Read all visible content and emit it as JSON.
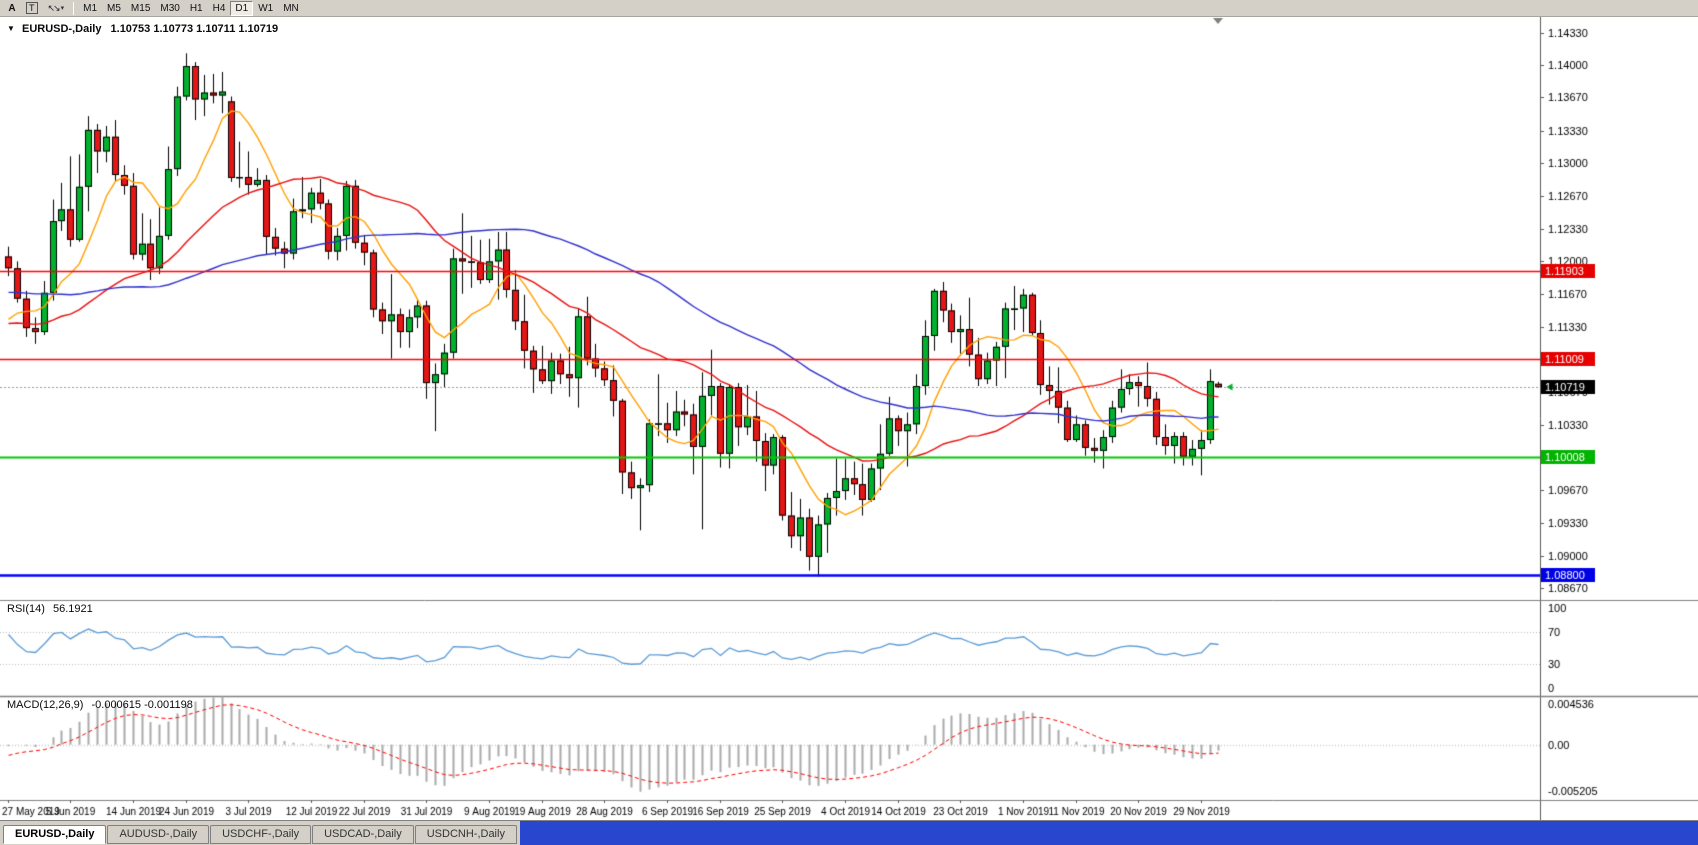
{
  "ui_colors": {
    "window_gray": "#d4d0c8",
    "tabbar_fill_blue": "#2946cf"
  },
  "toolbar": {
    "tool_buttons": [
      "A",
      "T"
    ],
    "timeframes": [
      "M1",
      "M5",
      "M15",
      "M30",
      "H1",
      "H4",
      "D1",
      "W1",
      "MN"
    ],
    "active_timeframe": "D1"
  },
  "tabs": {
    "items": [
      "EURUSD-,Daily",
      "AUDUSD-,Daily",
      "USDCHF-,Daily",
      "USDCAD-,Daily",
      "USDCNH-,Daily"
    ],
    "active": "EURUSD-,Daily"
  },
  "chart_data": {
    "type": "candlestick",
    "title": "EURUSD-,Daily",
    "ohlc_text": "1.10753 1.10773 1.10711 1.10719",
    "price_axis": {
      "max": 1.1449,
      "min": 1.0855,
      "ticks": [
        "1.14330",
        "1.14000",
        "1.13670",
        "1.13330",
        "1.13000",
        "1.12670",
        "1.12330",
        "1.12000",
        "1.11670",
        "1.11330",
        "1.11000",
        "1.10670",
        "1.10330",
        "1.10000",
        "1.09670",
        "1.09330",
        "1.09000",
        "1.08670"
      ]
    },
    "x_labels": [
      [
        0,
        "27 May 2019"
      ],
      [
        7,
        "5 Jun 2019"
      ],
      [
        14,
        "14 Jun 2019"
      ],
      [
        20,
        "24 Jun 2019"
      ],
      [
        27,
        "3 Jul 2019"
      ],
      [
        34,
        "12 Jul 2019"
      ],
      [
        40,
        "22 Jul 2019"
      ],
      [
        47,
        "31 Jul 2019"
      ],
      [
        54,
        "9 Aug 2019"
      ],
      [
        60,
        "19 Aug 2019"
      ],
      [
        67,
        "28 Aug 2019"
      ],
      [
        74,
        "6 Sep 2019"
      ],
      [
        80,
        "16 Sep 2019"
      ],
      [
        87,
        "25 Sep 2019"
      ],
      [
        94,
        "4 Oct 2019"
      ],
      [
        100,
        "14 Oct 2019"
      ],
      [
        107,
        "23 Oct 2019"
      ],
      [
        114,
        "1 Nov 2019"
      ],
      [
        120,
        "11 Nov 2019"
      ],
      [
        127,
        "20 Nov 2019"
      ],
      [
        134,
        "29 Nov 2019"
      ]
    ],
    "hlines": [
      {
        "price": 1.11903,
        "color": "#ff0000",
        "box_color": "#e60000",
        "width": 1.6,
        "label": "1.11903"
      },
      {
        "price": 1.11009,
        "color": "#ff0000",
        "box_color": "#e60000",
        "width": 1.6,
        "label": "1.11009"
      },
      {
        "price": 1.10008,
        "color": "#00cc00",
        "box_color": "#00b400",
        "width": 2,
        "label": "1.10008"
      },
      {
        "price": 1.088,
        "color": "#0000ff",
        "box_color": "#0000e6",
        "width": 2.5,
        "label": "1.08800"
      }
    ],
    "current_price": {
      "value": 1.10719,
      "label": "1.10719",
      "box_color": "#000000"
    },
    "objects": [
      {
        "type": "arrow-left",
        "price": 1.10719,
        "color": "#00b22d"
      }
    ],
    "moving_averages": [
      {
        "period": 8,
        "color": "#ffa000"
      },
      {
        "period": 28,
        "color": "#e81010"
      },
      {
        "period": 55,
        "color": "#3030cc"
      }
    ],
    "rsi": {
      "period": 14,
      "label_name": "RSI(14)",
      "label_value": "56.1921",
      "levels": [
        70,
        30
      ],
      "scale_labels": [
        "100",
        "70",
        "30",
        "0"
      ],
      "color": "#5b9bd5"
    },
    "macd": {
      "fast": 12,
      "slow": 26,
      "signal": 9,
      "label_name": "MACD(12,26,9)",
      "label_values": "-0.000615 -0.001198",
      "scale_max": 0.004536,
      "scale_min": -0.005205,
      "scale_labels": [
        "0.004536",
        "0.00",
        "-0.005205"
      ]
    },
    "colors": {
      "up": "#00b22d",
      "down": "#e51616",
      "wick": "#000000",
      "macd_hist": "#ababab",
      "macd_signal": "#ff0000"
    },
    "preroll_closes": [
      1.1255,
      1.1262,
      1.1248,
      1.124,
      1.1232,
      1.1238,
      1.1225,
      1.1218,
      1.1226,
      1.1212,
      1.1205,
      1.1212,
      1.1198,
      1.119,
      1.1196,
      1.1203,
      1.1188,
      1.1176,
      1.1182,
      1.117,
      1.1162,
      1.117,
      1.1155,
      1.1148,
      1.1156,
      1.1143,
      1.1136,
      1.1144,
      1.1152,
      1.116,
      1.1148,
      1.114,
      1.1132,
      1.1138,
      1.1125,
      1.1118,
      1.1126,
      1.1134,
      1.1121,
      1.1115,
      1.1122,
      1.1128,
      1.1116,
      1.111,
      1.1118,
      1.1124,
      1.1133,
      1.1141,
      1.115,
      1.1158
    ],
    "candles": [
      [
        1.1205,
        1.1215,
        1.1185,
        1.1193
      ],
      [
        1.1193,
        1.12,
        1.1158,
        1.1162
      ],
      [
        1.1162,
        1.117,
        1.1123,
        1.1132
      ],
      [
        1.1132,
        1.1143,
        1.1116,
        1.1128
      ],
      [
        1.1128,
        1.118,
        1.1125,
        1.1168
      ],
      [
        1.1168,
        1.1263,
        1.116,
        1.1241
      ],
      [
        1.1241,
        1.128,
        1.1231,
        1.1253
      ],
      [
        1.1253,
        1.1307,
        1.1215,
        1.1222
      ],
      [
        1.1222,
        1.1309,
        1.122,
        1.1276
      ],
      [
        1.1276,
        1.1348,
        1.1251,
        1.1334
      ],
      [
        1.1334,
        1.134,
        1.129,
        1.1312
      ],
      [
        1.1312,
        1.1338,
        1.1301,
        1.1327
      ],
      [
        1.1327,
        1.1344,
        1.1282,
        1.1288
      ],
      [
        1.1288,
        1.1298,
        1.1268,
        1.1277
      ],
      [
        1.1277,
        1.129,
        1.1202,
        1.1207
      ],
      [
        1.1207,
        1.1249,
        1.1201,
        1.1218
      ],
      [
        1.1218,
        1.1243,
        1.1181,
        1.1193
      ],
      [
        1.1193,
        1.1255,
        1.1187,
        1.1226
      ],
      [
        1.1226,
        1.1317,
        1.1222,
        1.1294
      ],
      [
        1.1294,
        1.1378,
        1.1287,
        1.1368
      ],
      [
        1.1368,
        1.1412,
        1.1364,
        1.1399
      ],
      [
        1.1399,
        1.1403,
        1.1344,
        1.1365
      ],
      [
        1.1365,
        1.139,
        1.1348,
        1.1372
      ],
      [
        1.1372,
        1.1391,
        1.1361,
        1.1369
      ],
      [
        1.1369,
        1.1393,
        1.1351,
        1.1373
      ],
      [
        1.1363,
        1.1368,
        1.1281,
        1.1285
      ],
      [
        1.1285,
        1.1322,
        1.1275,
        1.1286
      ],
      [
        1.1286,
        1.1312,
        1.1268,
        1.1278
      ],
      [
        1.1278,
        1.1295,
        1.1276,
        1.1283
      ],
      [
        1.1283,
        1.1288,
        1.1207,
        1.1225
      ],
      [
        1.1225,
        1.1234,
        1.1206,
        1.1213
      ],
      [
        1.1213,
        1.122,
        1.1193,
        1.1208
      ],
      [
        1.1208,
        1.1264,
        1.1202,
        1.1251
      ],
      [
        1.1251,
        1.1286,
        1.1244,
        1.1253
      ],
      [
        1.1253,
        1.1275,
        1.1239,
        1.127
      ],
      [
        1.127,
        1.1284,
        1.1253,
        1.1259
      ],
      [
        1.1259,
        1.1263,
        1.1202,
        1.121
      ],
      [
        1.121,
        1.1234,
        1.1201,
        1.1226
      ],
      [
        1.1226,
        1.1282,
        1.1211,
        1.1277
      ],
      [
        1.1277,
        1.1283,
        1.1213,
        1.1219
      ],
      [
        1.1219,
        1.1227,
        1.1196,
        1.1209
      ],
      [
        1.1209,
        1.1212,
        1.1143,
        1.1151
      ],
      [
        1.1151,
        1.1158,
        1.1126,
        1.1139
      ],
      [
        1.1139,
        1.1187,
        1.1101,
        1.1146
      ],
      [
        1.1146,
        1.1152,
        1.1112,
        1.1128
      ],
      [
        1.1128,
        1.1151,
        1.1112,
        1.1143
      ],
      [
        1.1143,
        1.1162,
        1.1132,
        1.1155
      ],
      [
        1.1155,
        1.116,
        1.106,
        1.1076
      ],
      [
        1.1076,
        1.1096,
        1.1027,
        1.1085
      ],
      [
        1.1085,
        1.1116,
        1.1072,
        1.1107
      ],
      [
        1.1107,
        1.1213,
        1.1101,
        1.1203
      ],
      [
        1.1203,
        1.1249,
        1.1167,
        1.12
      ],
      [
        1.12,
        1.1226,
        1.1173,
        1.1199
      ],
      [
        1.1199,
        1.1222,
        1.1177,
        1.1181
      ],
      [
        1.1181,
        1.1223,
        1.1178,
        1.12
      ],
      [
        1.12,
        1.123,
        1.1161,
        1.1212
      ],
      [
        1.1212,
        1.123,
        1.1163,
        1.1171
      ],
      [
        1.1171,
        1.1191,
        1.113,
        1.1139
      ],
      [
        1.1139,
        1.1166,
        1.1091,
        1.1109
      ],
      [
        1.1109,
        1.1114,
        1.1066,
        1.109
      ],
      [
        1.109,
        1.1114,
        1.1075,
        1.1078
      ],
      [
        1.1078,
        1.1107,
        1.1065,
        1.1099
      ],
      [
        1.1099,
        1.1106,
        1.1075,
        1.1085
      ],
      [
        1.1085,
        1.1113,
        1.1062,
        1.1081
      ],
      [
        1.1081,
        1.1152,
        1.1051,
        1.1144
      ],
      [
        1.1144,
        1.1164,
        1.1094,
        1.1101
      ],
      [
        1.1101,
        1.1116,
        1.1082,
        1.1091
      ],
      [
        1.1091,
        1.1098,
        1.1073,
        1.1079
      ],
      [
        1.1079,
        1.1094,
        1.1042,
        1.1058
      ],
      [
        1.1058,
        1.106,
        1.0963,
        1.0985
      ],
      [
        1.0985,
        1.0996,
        1.0958,
        1.0969
      ],
      [
        1.0969,
        1.0979,
        1.0926,
        1.0972
      ],
      [
        1.0972,
        1.1039,
        1.0965,
        1.1035
      ],
      [
        1.1035,
        1.1085,
        1.1022,
        1.1035
      ],
      [
        1.1035,
        1.1056,
        1.1015,
        1.1028
      ],
      [
        1.1028,
        1.1068,
        1.1022,
        1.1047
      ],
      [
        1.1047,
        1.1059,
        1.1032,
        1.1044
      ],
      [
        1.1044,
        1.1055,
        1.0983,
        1.1011
      ],
      [
        1.1011,
        1.1087,
        1.0927,
        1.1063
      ],
      [
        1.1063,
        1.111,
        1.1043,
        1.1073
      ],
      [
        1.1073,
        1.1076,
        1.099,
        1.1004
      ],
      [
        1.1004,
        1.1075,
        1.0989,
        1.1072
      ],
      [
        1.1072,
        1.1076,
        1.1012,
        1.1031
      ],
      [
        1.1031,
        1.1074,
        1.1023,
        1.1042
      ],
      [
        1.1042,
        1.1068,
        1.0996,
        1.1017
      ],
      [
        1.1017,
        1.1025,
        1.0966,
        1.0992
      ],
      [
        1.0992,
        1.1024,
        1.0983,
        1.1021
      ],
      [
        1.1021,
        1.1023,
        1.0936,
        1.0941
      ],
      [
        1.0941,
        1.0965,
        1.0908,
        1.092
      ],
      [
        1.092,
        1.0958,
        1.0905,
        1.0939
      ],
      [
        1.0939,
        1.0948,
        1.0885,
        1.0899
      ],
      [
        1.0899,
        1.0941,
        1.0879,
        1.0932
      ],
      [
        1.0932,
        1.0964,
        1.0903,
        1.0959
      ],
      [
        1.0959,
        1.0999,
        1.0941,
        1.0966
      ],
      [
        1.0966,
        1.0999,
        1.0957,
        1.0979
      ],
      [
        1.0979,
        1.0996,
        1.0962,
        1.0973
      ],
      [
        1.0973,
        1.0994,
        1.0941,
        1.0957
      ],
      [
        1.0957,
        1.0994,
        1.0955,
        1.0989
      ],
      [
        1.0989,
        1.1034,
        1.0967,
        1.1004
      ],
      [
        1.1004,
        1.1062,
        1.1002,
        1.104
      ],
      [
        1.104,
        1.1043,
        1.1012,
        1.1027
      ],
      [
        1.1027,
        1.1046,
        1.0991,
        1.1034
      ],
      [
        1.1034,
        1.1085,
        1.1024,
        1.1073
      ],
      [
        1.1073,
        1.114,
        1.1064,
        1.1124
      ],
      [
        1.1124,
        1.1172,
        1.1109,
        1.117
      ],
      [
        1.117,
        1.1179,
        1.1138,
        1.115
      ],
      [
        1.115,
        1.1157,
        1.1117,
        1.1128
      ],
      [
        1.1128,
        1.1145,
        1.1106,
        1.1131
      ],
      [
        1.1131,
        1.1163,
        1.1093,
        1.1105
      ],
      [
        1.1105,
        1.1122,
        1.1073,
        1.108
      ],
      [
        1.108,
        1.1107,
        1.1075,
        1.1099
      ],
      [
        1.1099,
        1.1118,
        1.1073,
        1.1113
      ],
      [
        1.1113,
        1.1158,
        1.1081,
        1.1152
      ],
      [
        1.1152,
        1.1175,
        1.113,
        1.1152
      ],
      [
        1.1152,
        1.1172,
        1.1128,
        1.1166
      ],
      [
        1.1166,
        1.1168,
        1.1124,
        1.1127
      ],
      [
        1.1127,
        1.114,
        1.1064,
        1.1074
      ],
      [
        1.1074,
        1.1093,
        1.1054,
        1.1068
      ],
      [
        1.1068,
        1.1092,
        1.1035,
        1.1051
      ],
      [
        1.1051,
        1.1058,
        1.1016,
        1.1018
      ],
      [
        1.1018,
        1.1043,
        1.1016,
        1.1034
      ],
      [
        1.1034,
        1.1038,
        1.1002,
        1.101
      ],
      [
        1.101,
        1.102,
        1.0995,
        1.1007
      ],
      [
        1.1007,
        1.1028,
        1.0989,
        1.1021
      ],
      [
        1.1021,
        1.1058,
        1.1015,
        1.1051
      ],
      [
        1.1051,
        1.109,
        1.1046,
        1.107
      ],
      [
        1.107,
        1.1085,
        1.1064,
        1.1077
      ],
      [
        1.1077,
        1.1083,
        1.1052,
        1.1073
      ],
      [
        1.1073,
        1.1097,
        1.1052,
        1.106
      ],
      [
        1.106,
        1.1067,
        1.1013,
        1.1021
      ],
      [
        1.1021,
        1.1034,
        1.1003,
        1.1012
      ],
      [
        1.1012,
        1.1026,
        1.0994,
        1.1022
      ],
      [
        1.1022,
        1.1026,
        1.0992,
        1.1001
      ],
      [
        1.1001,
        1.1018,
        1.0992,
        1.1009
      ],
      [
        1.1009,
        1.1028,
        1.0982,
        1.1018
      ],
      [
        1.1018,
        1.109,
        1.1014,
        1.1078
      ],
      [
        1.10753,
        1.10773,
        1.10711,
        1.10719
      ]
    ]
  }
}
